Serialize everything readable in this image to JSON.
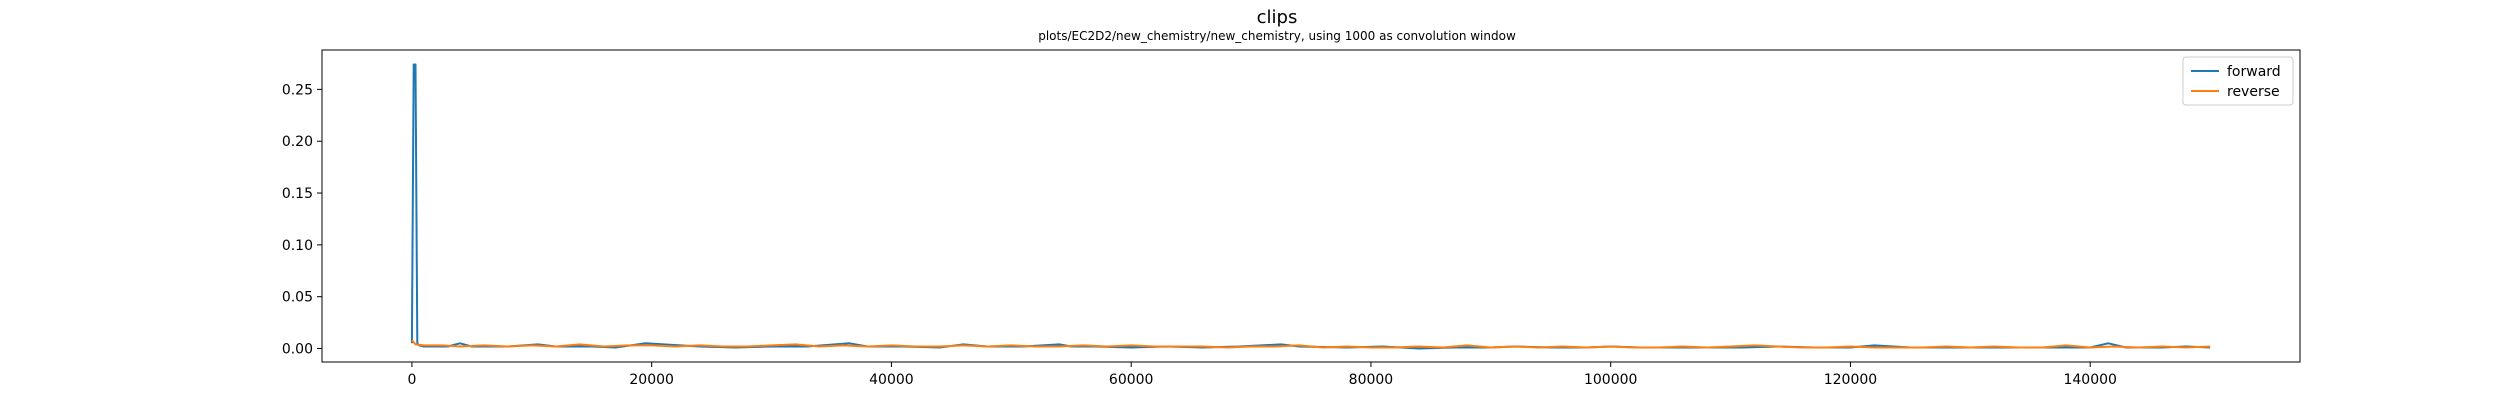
{
  "chart_data": {
    "type": "line",
    "title": "clips",
    "subtitle": "plots/EC2D2/new_chemistry/new_chemistry, using 1000 as convolution window",
    "xlabel": "",
    "ylabel": "",
    "xlim": [
      -7500,
      157500
    ],
    "ylim": [
      -0.013,
      0.288
    ],
    "x_ticks": [
      0,
      20000,
      40000,
      60000,
      80000,
      100000,
      120000,
      140000
    ],
    "x_tick_labels": [
      "0",
      "20000",
      "40000",
      "60000",
      "80000",
      "100000",
      "120000",
      "140000"
    ],
    "y_ticks": [
      0.0,
      0.05,
      0.1,
      0.15,
      0.2,
      0.25
    ],
    "y_tick_labels": [
      "0.00",
      "0.05",
      "0.10",
      "0.15",
      "0.20",
      "0.25"
    ],
    "grid": false,
    "legend_position": "top-right",
    "series": [
      {
        "name": "forward",
        "color": "#1f77b4",
        "x": [
          0,
          150,
          300,
          450,
          600,
          1000,
          3000,
          4000,
          5000,
          8000,
          10500,
          12000,
          15000,
          17000,
          19500,
          21000,
          24000,
          27000,
          30000,
          33000,
          36500,
          38000,
          41000,
          44000,
          46000,
          48000,
          51000,
          54000,
          55000,
          57000,
          60000,
          63000,
          66000,
          69000,
          72500,
          74000,
          78000,
          81000,
          84000,
          87000,
          90000,
          92000,
          95000,
          98000,
          100000,
          102500,
          105000,
          108000,
          111000,
          114000,
          117000,
          120000,
          122000,
          125000,
          128000,
          131000,
          134000,
          137000,
          140000,
          141500,
          143000,
          146000,
          148000,
          150000
        ],
        "y": [
          0.005,
          0.274,
          0.274,
          0.005,
          0.003,
          0.002,
          0.002,
          0.005,
          0.002,
          0.002,
          0.004,
          0.002,
          0.002,
          0.001,
          0.005,
          0.004,
          0.002,
          0.001,
          0.002,
          0.002,
          0.005,
          0.002,
          0.002,
          0.001,
          0.004,
          0.002,
          0.002,
          0.004,
          0.002,
          0.002,
          0.001,
          0.002,
          0.001,
          0.002,
          0.004,
          0.002,
          0.001,
          0.002,
          0.0,
          0.001,
          0.001,
          0.002,
          0.001,
          0.001,
          0.002,
          0.001,
          0.001,
          0.001,
          0.001,
          0.002,
          0.001,
          0.001,
          0.003,
          0.001,
          0.001,
          0.001,
          0.001,
          0.001,
          0.001,
          0.005,
          0.001,
          0.001,
          0.002,
          0.001
        ]
      },
      {
        "name": "reverse",
        "color": "#ff7f0e",
        "x": [
          0,
          300,
          1000,
          2500,
          4000,
          6000,
          8000,
          10000,
          12000,
          14000,
          16000,
          18000,
          20000,
          22000,
          24000,
          26000,
          28000,
          30000,
          32000,
          34000,
          36000,
          38000,
          40000,
          42000,
          44000,
          46000,
          48000,
          50000,
          52000,
          54000,
          56000,
          58000,
          60000,
          62000,
          64000,
          66000,
          68000,
          70000,
          72000,
          74000,
          76000,
          78000,
          80000,
          82000,
          84000,
          86000,
          88000,
          90000,
          92000,
          94000,
          96000,
          98000,
          100000,
          102000,
          104000,
          106000,
          108000,
          110000,
          112000,
          114000,
          116000,
          118000,
          120000,
          122000,
          124000,
          126000,
          128000,
          130000,
          132000,
          134000,
          136000,
          138000,
          140000,
          142000,
          144000,
          146000,
          148000,
          150000
        ],
        "y": [
          0.008,
          0.004,
          0.003,
          0.003,
          0.002,
          0.003,
          0.002,
          0.003,
          0.002,
          0.004,
          0.002,
          0.003,
          0.003,
          0.002,
          0.003,
          0.002,
          0.002,
          0.003,
          0.004,
          0.002,
          0.003,
          0.002,
          0.003,
          0.002,
          0.002,
          0.003,
          0.002,
          0.003,
          0.002,
          0.002,
          0.003,
          0.002,
          0.003,
          0.002,
          0.002,
          0.002,
          0.001,
          0.002,
          0.002,
          0.003,
          0.001,
          0.002,
          0.001,
          0.001,
          0.002,
          0.001,
          0.003,
          0.001,
          0.002,
          0.001,
          0.002,
          0.001,
          0.002,
          0.001,
          0.001,
          0.002,
          0.001,
          0.002,
          0.003,
          0.002,
          0.001,
          0.001,
          0.002,
          0.001,
          0.001,
          0.001,
          0.002,
          0.001,
          0.002,
          0.001,
          0.001,
          0.003,
          0.001,
          0.002,
          0.001,
          0.002,
          0.001,
          0.002
        ]
      }
    ]
  }
}
